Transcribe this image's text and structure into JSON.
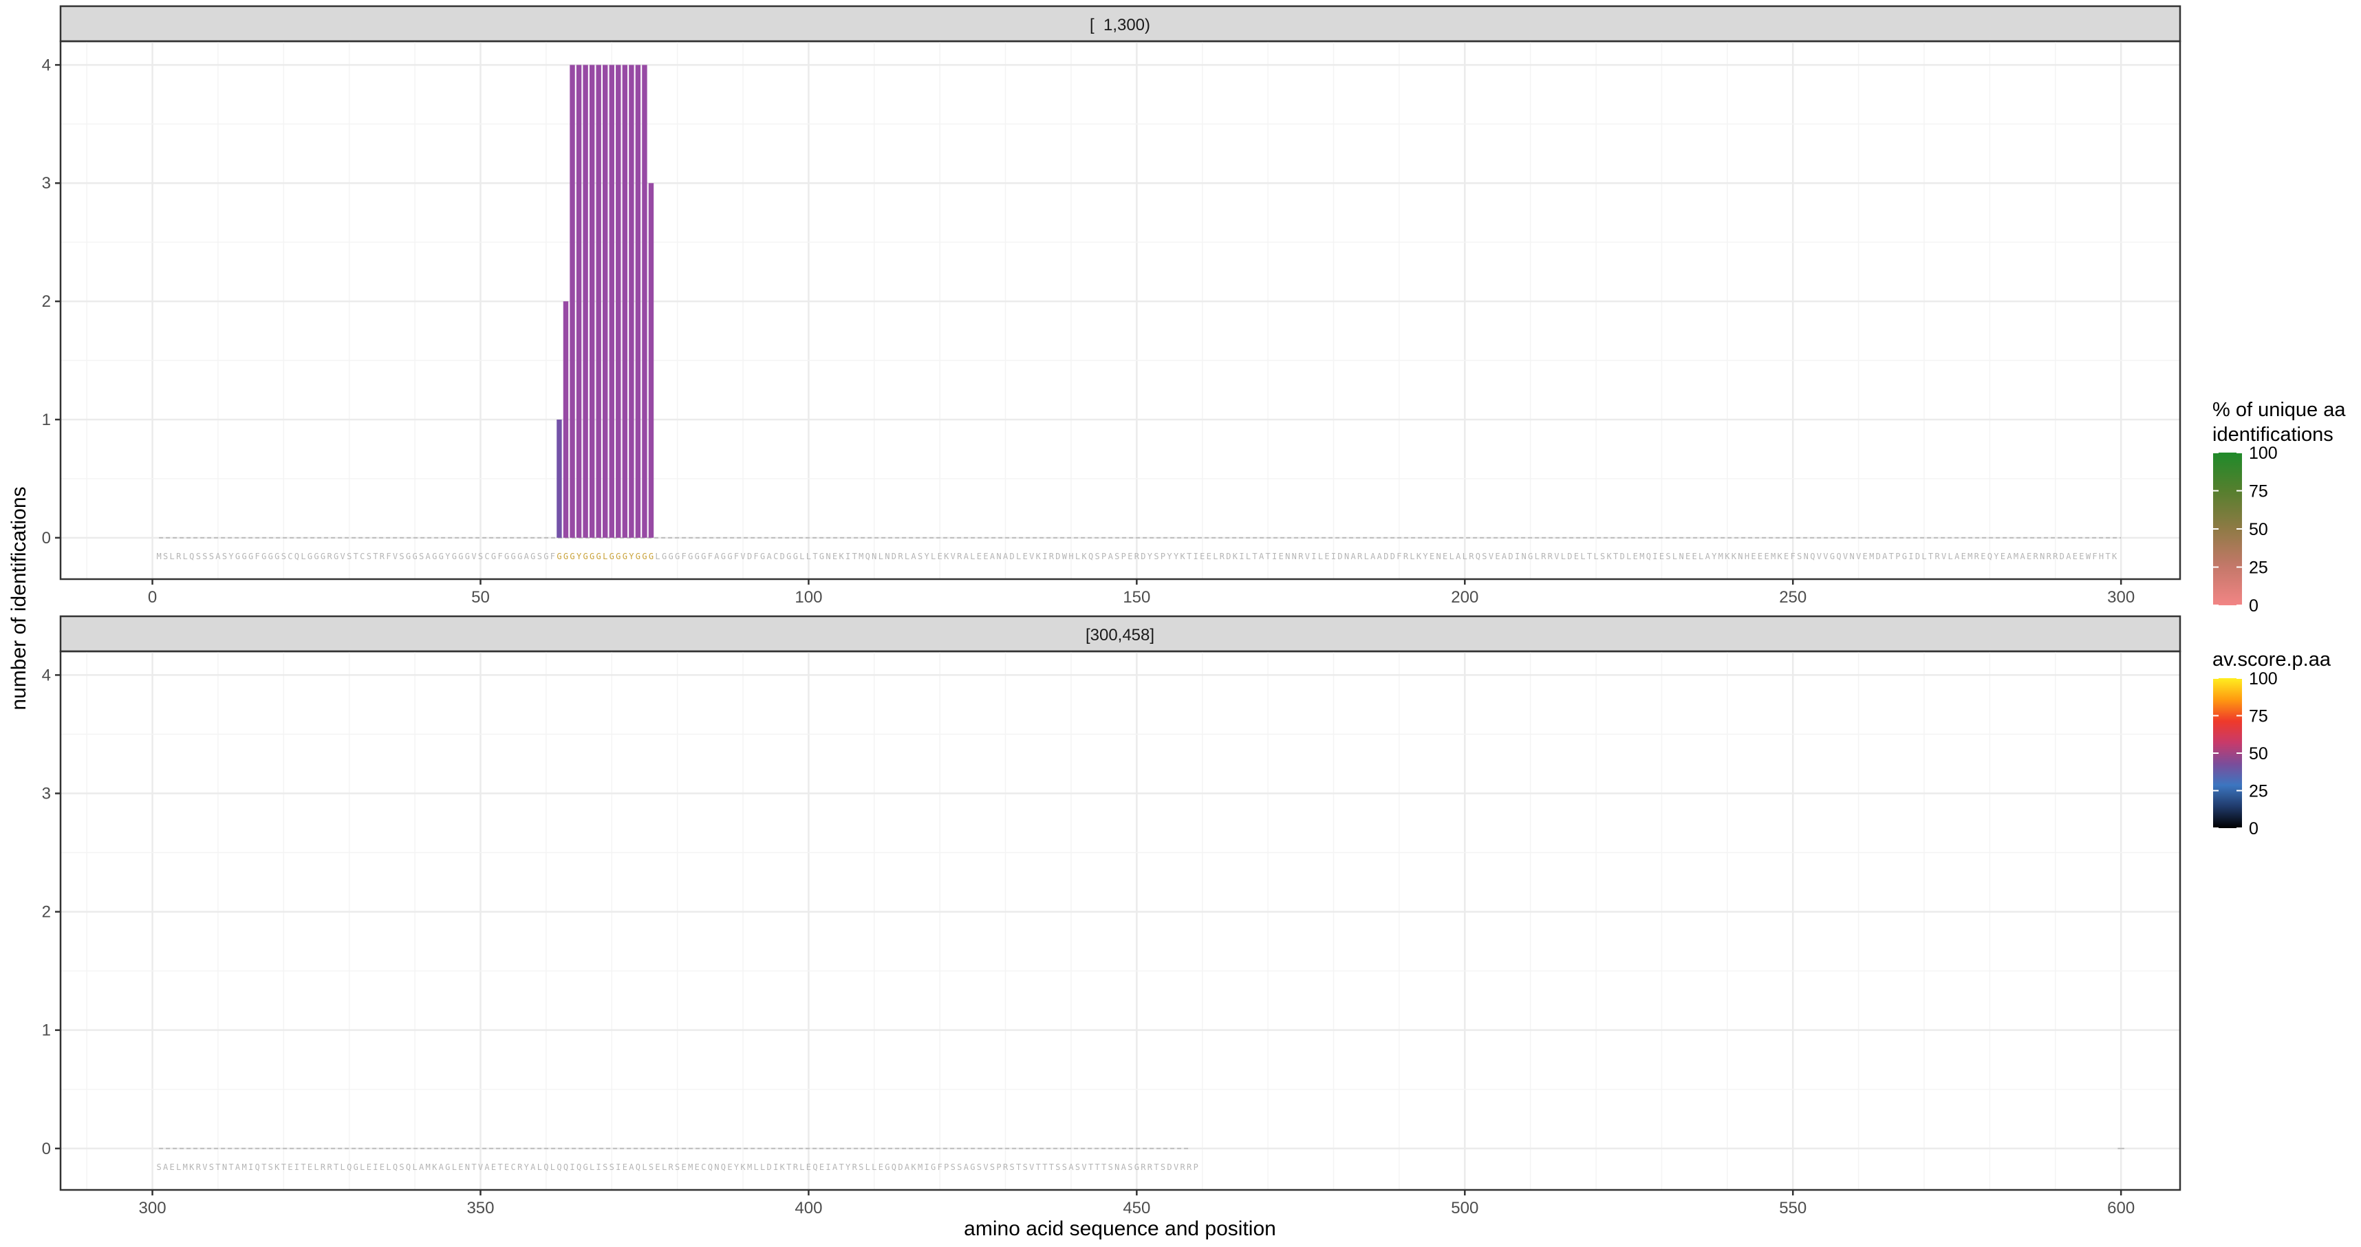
{
  "y_axis_label": "number of identifications",
  "x_axis_label": "amino acid sequence and position",
  "legend": {
    "unique": {
      "title_line1": "% of unique aa",
      "title_line2": "identifications",
      "ticks": [
        "100",
        "75",
        "50",
        "25",
        "0"
      ],
      "colors": [
        "#1f8a2a",
        "#567f2e",
        "#8f7a45",
        "#c5786a",
        "#f28585"
      ]
    },
    "score": {
      "title": "av.score.p.aa",
      "ticks": [
        "100",
        "75",
        "50",
        "25",
        "0"
      ],
      "colors": [
        "#ffee20",
        "#ff9a10",
        "#ef3a2a",
        "#c83a6a",
        "#7b4d9a",
        "#3c76c0",
        "#203a6a",
        "#000000"
      ]
    }
  },
  "chart_data": [
    {
      "type": "bar",
      "panel_label": "[  1,300)",
      "x_range": [
        -14,
        309
      ],
      "y_range": [
        -0.35,
        4.2
      ],
      "x_ticks": [
        "0",
        "50",
        "100",
        "150",
        "200",
        "250",
        "300"
      ],
      "y_ticks": [
        "0",
        "1",
        "2",
        "3",
        "4"
      ],
      "sequence_start": 1,
      "sequence_end": 300,
      "sequence": "MSLRLQSSSASYGGGFGGGSCQLGGGRGVSTCSTRFVSGGSAGGYGGGVSCGFGGGAGSGFGGGYGGGLGGGYGGGLGGGFGGGFAGGFVDFGACDGGLLTGNEKITMQNLNDRLASYLEKVRALEEANADLEVKIRDWHLKQSPASPERDYSPYYKTIEELRDKILTATIENNRVILEIDNARLAADDFRLKYENELALRQSVEADINGLRRVLDELTLSKTDLEMQIESLNEELAYMKKNHEEEMKEFSNQVVGQVNVEMDATPGIDLTRVLAEMREQYEAMAERNRRDAEEWFHTK",
      "highlight_range": [
        62,
        77
      ],
      "bar_color": "#974aa4",
      "first_bar_color": "#7452a8",
      "bars": [
        {
          "x": 62,
          "y": 1
        },
        {
          "x": 63,
          "y": 2
        },
        {
          "x": 64,
          "y": 4
        },
        {
          "x": 65,
          "y": 4
        },
        {
          "x": 66,
          "y": 4
        },
        {
          "x": 67,
          "y": 4
        },
        {
          "x": 68,
          "y": 4
        },
        {
          "x": 69,
          "y": 4
        },
        {
          "x": 70,
          "y": 4
        },
        {
          "x": 71,
          "y": 4
        },
        {
          "x": 72,
          "y": 4
        },
        {
          "x": 73,
          "y": 4
        },
        {
          "x": 74,
          "y": 4
        },
        {
          "x": 75,
          "y": 4
        },
        {
          "x": 76,
          "y": 3
        }
      ]
    },
    {
      "type": "bar",
      "panel_label": "[300,458]",
      "x_range": [
        286,
        609
      ],
      "y_range": [
        -0.35,
        4.2
      ],
      "x_ticks": [
        "300",
        "350",
        "400",
        "450",
        "500",
        "550",
        "600"
      ],
      "y_ticks": [
        "0",
        "1",
        "2",
        "3",
        "4"
      ],
      "sequence_start": 301,
      "sequence_end": 458,
      "sequence": "SAELMKRVSTNTAMIQTSKTEITELRRTLQGLEIELQSQLAMKAGLENTVAETECRYALQLQQIQGLISSIEAQLSELRSEMECQNQEYKMLLDIKTRLEQEIATYRSLLEGQDAKMIGFPSSAGSVSPRSTSVTTTSSASVTTTSNASGRRTSDVRRP",
      "bars": []
    }
  ]
}
